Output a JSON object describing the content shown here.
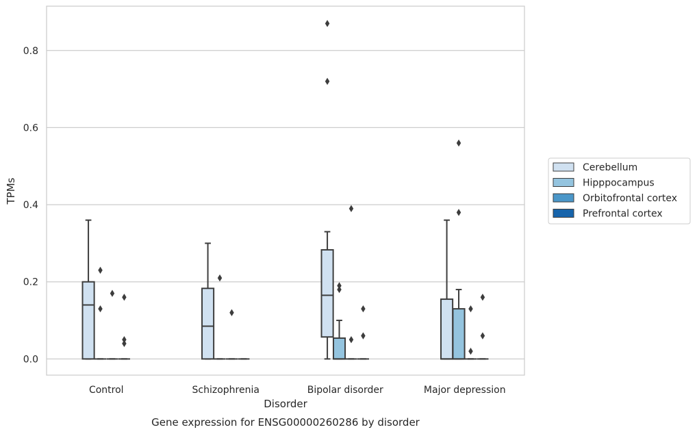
{
  "chart_data": {
    "type": "box",
    "title": "",
    "caption": "Gene expression for ENSG00000260286 by disorder",
    "xlabel": "Disorder",
    "ylabel": "TPMs",
    "ylim": [
      -0.042,
      0.915
    ],
    "yticks": [
      0.0,
      0.2,
      0.4,
      0.6,
      0.8
    ],
    "ytick_labels": [
      "0.0",
      "0.2",
      "0.4",
      "0.6",
      "0.8"
    ],
    "categories": [
      "Control",
      "Schizophrenia",
      "Bipolar disorder",
      "Major depression"
    ],
    "grid": "horizontal",
    "legend_position": "right",
    "series": [
      {
        "name": "Cerebellum",
        "color": "#d0e1f1",
        "boxes": [
          {
            "q1": 0.0,
            "median": 0.14,
            "q3": 0.2,
            "whisker_low": 0.0,
            "whisker_high": 0.36,
            "outliers": []
          },
          {
            "q1": 0.0,
            "median": 0.085,
            "q3": 0.183,
            "whisker_low": 0.0,
            "whisker_high": 0.3,
            "outliers": []
          },
          {
            "q1": 0.057,
            "median": 0.165,
            "q3": 0.283,
            "whisker_low": 0.0,
            "whisker_high": 0.33,
            "outliers": [
              0.72,
              0.87
            ]
          },
          {
            "q1": 0.0,
            "median": 0.0,
            "q3": 0.155,
            "whisker_low": 0.0,
            "whisker_high": 0.36,
            "outliers": []
          }
        ]
      },
      {
        "name": "Hipppocampus",
        "color": "#94c4df",
        "boxes": [
          {
            "q1": 0.0,
            "median": 0.0,
            "q3": 0.0,
            "whisker_low": 0.0,
            "whisker_high": 0.0,
            "outliers": [
              0.13,
              0.23
            ]
          },
          {
            "q1": 0.0,
            "median": 0.0,
            "q3": 0.0,
            "whisker_low": 0.0,
            "whisker_high": 0.0,
            "outliers": [
              0.21
            ]
          },
          {
            "q1": 0.0,
            "median": 0.0,
            "q3": 0.054,
            "whisker_low": 0.0,
            "whisker_high": 0.1,
            "outliers": [
              0.18,
              0.19
            ]
          },
          {
            "q1": 0.0,
            "median": 0.0,
            "q3": 0.13,
            "whisker_low": 0.0,
            "whisker_high": 0.18,
            "outliers": [
              0.38,
              0.56
            ]
          }
        ]
      },
      {
        "name": "Orbitofrontal cortex",
        "color": "#4b97c9",
        "boxes": [
          {
            "q1": 0.0,
            "median": 0.0,
            "q3": 0.0,
            "whisker_low": 0.0,
            "whisker_high": 0.0,
            "outliers": [
              0.17
            ]
          },
          {
            "q1": 0.0,
            "median": 0.0,
            "q3": 0.0,
            "whisker_low": 0.0,
            "whisker_high": 0.0,
            "outliers": [
              0.12
            ]
          },
          {
            "q1": 0.0,
            "median": 0.0,
            "q3": 0.0,
            "whisker_low": 0.0,
            "whisker_high": 0.0,
            "outliers": [
              0.05,
              0.39
            ]
          },
          {
            "q1": 0.0,
            "median": 0.0,
            "q3": 0.0,
            "whisker_low": 0.0,
            "whisker_high": 0.0,
            "outliers": [
              0.02,
              0.13
            ]
          }
        ]
      },
      {
        "name": "Prefrontal cortex",
        "color": "#1764ab",
        "boxes": [
          {
            "q1": 0.0,
            "median": 0.0,
            "q3": 0.0,
            "whisker_low": 0.0,
            "whisker_high": 0.0,
            "outliers": [
              0.04,
              0.05,
              0.16
            ]
          },
          {
            "q1": 0.0,
            "median": 0.0,
            "q3": 0.0,
            "whisker_low": 0.0,
            "whisker_high": 0.0,
            "outliers": []
          },
          {
            "q1": 0.0,
            "median": 0.0,
            "q3": 0.0,
            "whisker_low": 0.0,
            "whisker_high": 0.0,
            "outliers": [
              0.06,
              0.13
            ]
          },
          {
            "q1": 0.0,
            "median": 0.0,
            "q3": 0.0,
            "whisker_low": 0.0,
            "whisker_high": 0.0,
            "outliers": [
              0.06,
              0.16
            ]
          }
        ]
      }
    ]
  }
}
